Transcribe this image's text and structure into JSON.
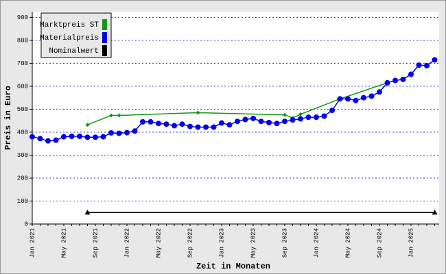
{
  "chart_data": {
    "type": "line",
    "x_label": "Zeit in Monaten",
    "y_label": "Preis in Euro",
    "categories": [
      "Jan 2021",
      null,
      null,
      null,
      "May 2021",
      null,
      null,
      null,
      "Sep 2021",
      null,
      null,
      null,
      "Jan 2022",
      null,
      null,
      null,
      "May 2022",
      null,
      null,
      null,
      "Sep 2022",
      null,
      null,
      null,
      "Jan 2023",
      null,
      null,
      null,
      "May 2023",
      null,
      null,
      null,
      "Sep 2023",
      null,
      null,
      null,
      "Jan 2024",
      null,
      null,
      null,
      "May 2024",
      null,
      null,
      null,
      "Sep 2024",
      null,
      null,
      null,
      "Jan 2025",
      null,
      null,
      null
    ],
    "ylim": [
      0,
      925
    ],
    "yticks": [
      0,
      100,
      200,
      300,
      400,
      500,
      600,
      700,
      800,
      900
    ],
    "grid": true,
    "legend": "top-left",
    "series": [
      {
        "name": "Marktpreis ST",
        "color": "#119911",
        "marker": "diamond",
        "values": [
          null,
          null,
          null,
          null,
          null,
          null,
          null,
          432,
          null,
          null,
          473,
          473,
          null,
          null,
          null,
          null,
          null,
          null,
          null,
          null,
          null,
          485,
          null,
          null,
          null,
          null,
          null,
          null,
          null,
          null,
          null,
          null,
          475,
          462,
          478,
          null,
          null,
          null,
          null,
          545,
          null,
          null,
          null,
          null,
          null,
          615,
          null,
          null,
          null,
          null,
          null,
          null
        ]
      },
      {
        "name": "Materialpreis",
        "color": "#0000ee",
        "marker": "circle",
        "values": [
          380,
          372,
          362,
          365,
          380,
          382,
          382,
          378,
          378,
          380,
          397,
          395,
          398,
          405,
          445,
          445,
          438,
          435,
          428,
          435,
          425,
          422,
          422,
          422,
          440,
          432,
          447,
          455,
          460,
          447,
          442,
          438,
          447,
          453,
          458,
          465,
          465,
          470,
          495,
          545,
          545,
          538,
          550,
          557,
          575,
          615,
          625,
          630,
          652,
          692,
          690,
          715
        ]
      },
      {
        "name": "Nominalwert",
        "color": "#000000",
        "marker": "triangle",
        "values": [
          null,
          null,
          null,
          null,
          null,
          null,
          null,
          50,
          null,
          null,
          null,
          null,
          null,
          null,
          null,
          null,
          null,
          null,
          null,
          null,
          null,
          null,
          null,
          null,
          null,
          null,
          null,
          null,
          null,
          null,
          null,
          null,
          null,
          null,
          null,
          null,
          null,
          null,
          null,
          null,
          null,
          null,
          null,
          null,
          null,
          null,
          null,
          null,
          null,
          null,
          null,
          50
        ]
      }
    ]
  }
}
